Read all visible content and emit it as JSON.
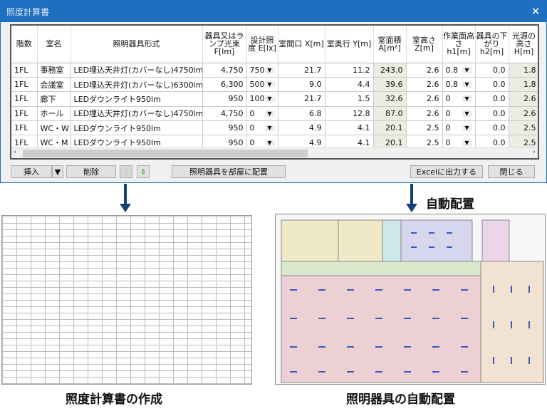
{
  "dialog": {
    "title": "照度計算書",
    "close_icon": "close-icon"
  },
  "table": {
    "headers": [
      "階数",
      "室名",
      "照明器具形式",
      "器具又はランプ光束 F[lm]",
      "設計照度 E[lx]",
      "室間口 X[m]",
      "室奥行 Y[m]",
      "室面積 A[m²]",
      "室高さ Z[m]",
      "作業面高さ h1[m]",
      "器具の下がり h2[m]",
      "光源の高さ H[m]"
    ],
    "rows": [
      [
        "1FL",
        "事務室",
        "LED埋込天井灯(カバーなし)4750lm",
        "4,750",
        "750",
        "21.7",
        "11.2",
        "243.0",
        "2.6",
        "0.8",
        "0.0",
        "1.8"
      ],
      [
        "1FL",
        "会議室",
        "LED埋込天井灯(カバーなし)6300lm...",
        "6,300",
        "500",
        "9.0",
        "4.4",
        "39.6",
        "2.6",
        "0.8",
        "0.0",
        "1.8"
      ],
      [
        "1FL",
        "廊下",
        "LEDダウンライト950lm",
        "950",
        "100",
        "21.7",
        "1.5",
        "32.6",
        "2.6",
        "0",
        "0.0",
        "2.6"
      ],
      [
        "1FL",
        "ホール",
        "LED埋込天井灯(カバーなし)4750lm",
        "4,750",
        "0",
        "6.8",
        "12.8",
        "87.0",
        "2.6",
        "0",
        "0.0",
        "2.6"
      ],
      [
        "1FL",
        "WC・W",
        "LEDダウンライト950lm",
        "950",
        "0",
        "4.9",
        "4.1",
        "20.1",
        "2.5",
        "0",
        "0.0",
        "2.5"
      ],
      [
        "1FL",
        "WC・M",
        "LEDダウンライト950lm",
        "950",
        "0",
        "4.9",
        "4.1",
        "20.1",
        "2.5",
        "0",
        "0.0",
        "2.5"
      ]
    ]
  },
  "buttons": {
    "insert": "挿入",
    "delete": "削除",
    "place": "照明器具を部屋に配置",
    "excel": "Excelに出力する",
    "close": "閉じる"
  },
  "labels": {
    "auto_place": "自動配置",
    "caption_left": "照度計算書の作成",
    "caption_right": "照明器具の自動配置"
  },
  "colors": {
    "titlebar": "#1e6fbf",
    "arrow": "#163e78",
    "readonly_cell": "#ecece2"
  }
}
